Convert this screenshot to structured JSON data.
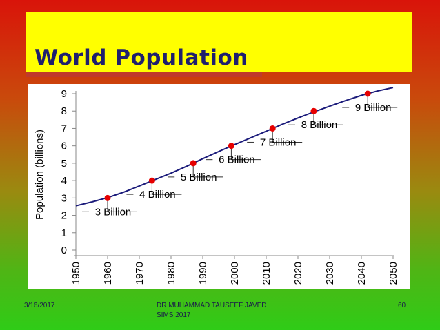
{
  "slide": {
    "title": "World Population",
    "footer_date": "3/16/2017",
    "footer_author": "DR MUHAMMAD TAUSEEF JAVED",
    "footer_institution": "SIMS 2017",
    "page_number": "60"
  },
  "colors": {
    "title_bg": "#ffff00",
    "title_text": "#1f1f6e",
    "title_underline": "#c0392b",
    "line": "#1a1a7a",
    "marker": "#e60000"
  },
  "chart_data": {
    "type": "line",
    "title": "",
    "xlabel": "",
    "ylabel": "Population (billions)",
    "xlim": [
      1950,
      2050
    ],
    "ylim": [
      0,
      9
    ],
    "x_ticks": [
      "1950",
      "1960",
      "1970",
      "1980",
      "1990",
      "2000",
      "2010",
      "2020",
      "2030",
      "2040",
      "2050"
    ],
    "y_ticks": [
      "0",
      "1",
      "2",
      "3",
      "4",
      "5",
      "6",
      "7",
      "8",
      "9"
    ],
    "grid": false,
    "series": [
      {
        "x": [
          1950,
          1955,
          1960,
          1965,
          1970,
          1975,
          1980,
          1985,
          1990,
          1995,
          2000,
          2005,
          2010,
          2015,
          2020,
          2025,
          2030,
          2035,
          2040,
          2045,
          2050
        ],
        "y": [
          2.55,
          2.77,
          3.02,
          3.33,
          3.69,
          4.06,
          4.43,
          4.83,
          5.26,
          5.67,
          6.07,
          6.45,
          6.84,
          7.23,
          7.6,
          7.95,
          8.28,
          8.6,
          8.9,
          9.15,
          9.35
        ]
      }
    ],
    "milestones": [
      {
        "label": "3 Billion",
        "x": 1960,
        "y": 3
      },
      {
        "label": "4 Billion",
        "x": 1974,
        "y": 4
      },
      {
        "label": "5 Billion",
        "x": 1987,
        "y": 5
      },
      {
        "label": "6 Billion",
        "x": 1999,
        "y": 6
      },
      {
        "label": "7 Billion",
        "x": 2012,
        "y": 7
      },
      {
        "label": "8 Billion",
        "x": 2025,
        "y": 8
      },
      {
        "label": "9 Billion",
        "x": 2042,
        "y": 9
      }
    ]
  }
}
